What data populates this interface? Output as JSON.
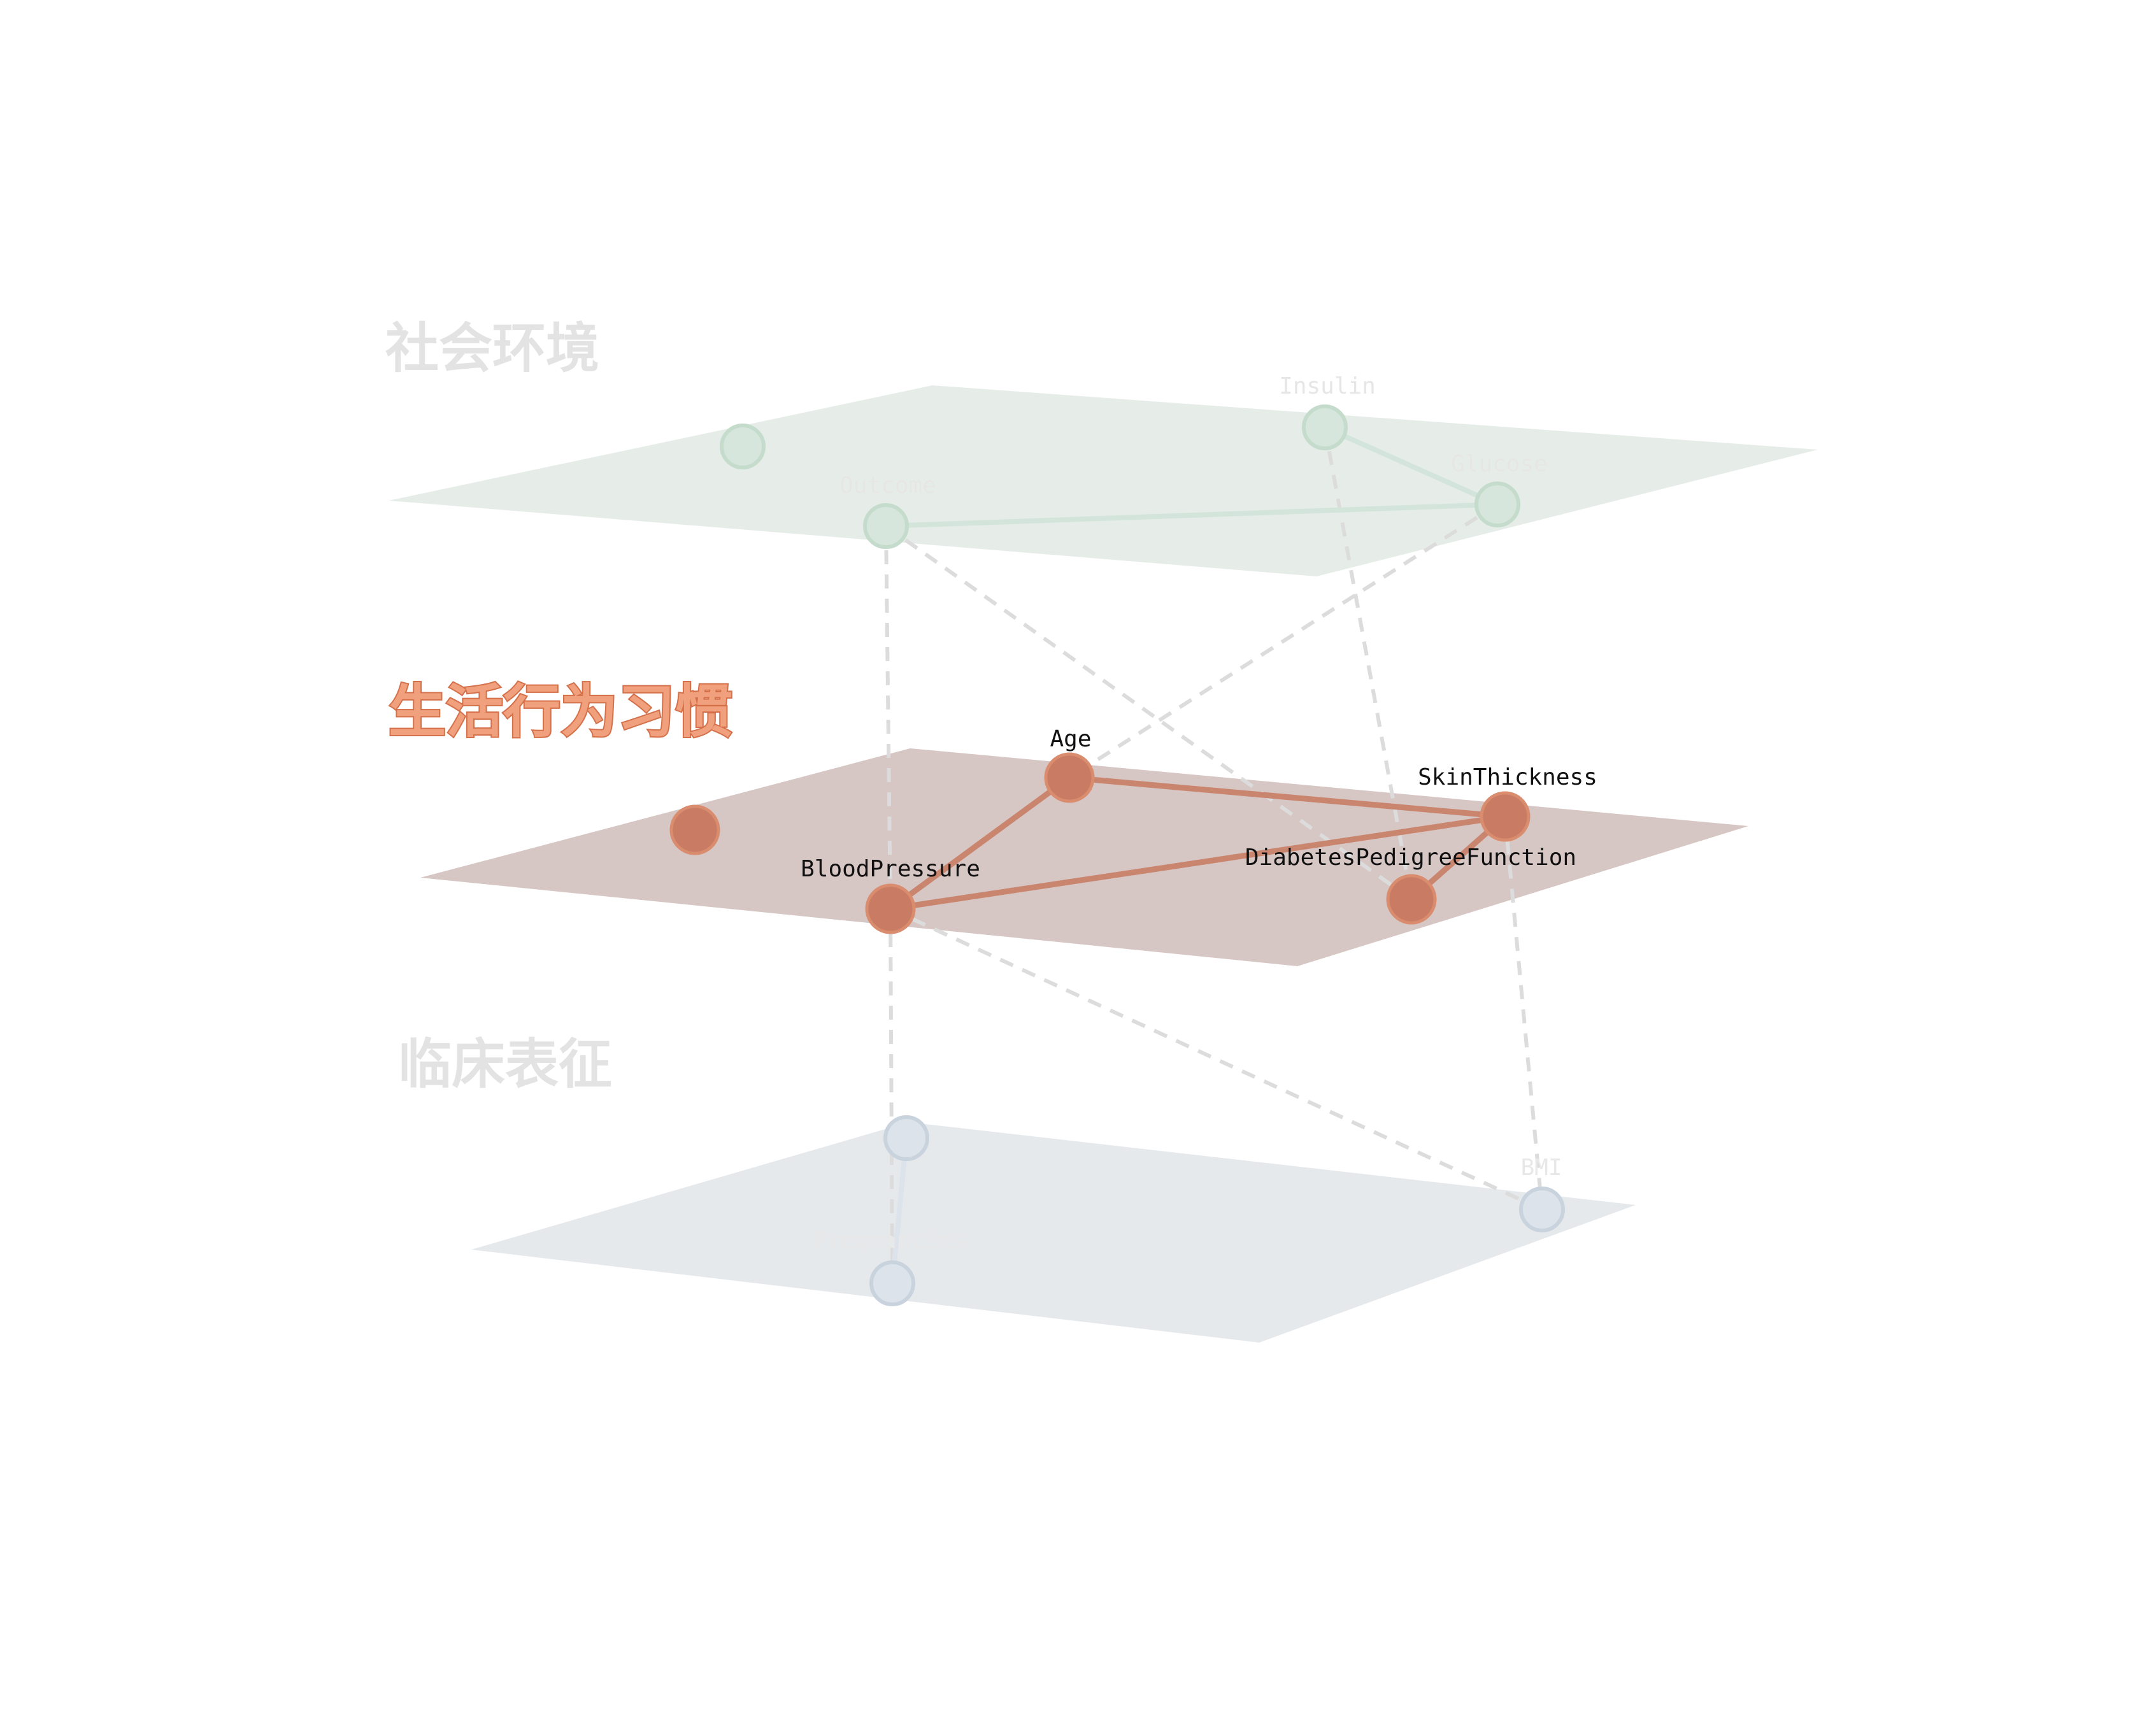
{
  "layers": [
    {
      "id": "social",
      "title": "社会环境",
      "active": false,
      "plane_color": "#e6ede9",
      "node_color": "#d6e6dc",
      "node_stroke": "#c5dccd",
      "title_color": "#e3e3e3",
      "label_color": "#e6e6e6",
      "edge_color": "#d3e5da"
    },
    {
      "id": "lifestyle",
      "title": "生活行为习惯",
      "active": true,
      "plane_color": "#d6c6c4",
      "node_color": "#c97b63",
      "node_stroke": "#d98c6e",
      "title_color": "#f0a07c",
      "title_stroke": "#d4704a",
      "label_color": "#111111",
      "edge_color": "#c9856e"
    },
    {
      "id": "clinical",
      "title": "临床表征",
      "active": false,
      "plane_color": "#e6e9ec",
      "node_color": "#dde3ea",
      "node_stroke": "#c9d3de",
      "title_color": "#e3e3e3",
      "label_color": "#e8e8e8",
      "edge_color": "#dde3ea"
    }
  ],
  "nodes": [
    {
      "id": "social-unlabeled",
      "layer": "social",
      "label": ""
    },
    {
      "id": "insulin",
      "layer": "social",
      "label": "Insulin"
    },
    {
      "id": "outcome",
      "layer": "social",
      "label": "Outcome"
    },
    {
      "id": "glucose",
      "layer": "social",
      "label": "Glucose"
    },
    {
      "id": "lifestyle-unlabeled",
      "layer": "lifestyle",
      "label": ""
    },
    {
      "id": "age",
      "layer": "lifestyle",
      "label": "Age"
    },
    {
      "id": "skinthickness",
      "layer": "lifestyle",
      "label": "SkinThickness"
    },
    {
      "id": "bloodpressure",
      "layer": "lifestyle",
      "label": "BloodPressure"
    },
    {
      "id": "dpf",
      "layer": "lifestyle",
      "label": "DiabetesPedigreeFunction"
    },
    {
      "id": "clinical-unlabeled",
      "layer": "clinical",
      "label": ""
    },
    {
      "id": "bmi",
      "layer": "clinical",
      "label": "BMI"
    },
    {
      "id": "pregnancies",
      "layer": "clinical",
      "label": "Pregnancies"
    }
  ],
  "intra_edges": [
    {
      "from": "insulin",
      "to": "glucose"
    },
    {
      "from": "outcome",
      "to": "glucose"
    },
    {
      "from": "age",
      "to": "bloodpressure"
    },
    {
      "from": "age",
      "to": "skinthickness"
    },
    {
      "from": "bloodpressure",
      "to": "skinthickness"
    },
    {
      "from": "dpf",
      "to": "skinthickness"
    },
    {
      "from": "pregnancies",
      "to": "clinical-unlabeled"
    }
  ],
  "inter_edges": [
    {
      "from": "outcome",
      "to": "bloodpressure"
    },
    {
      "from": "outcome",
      "to": "dpf"
    },
    {
      "from": "insulin",
      "to": "dpf"
    },
    {
      "from": "glucose",
      "to": "age"
    },
    {
      "from": "bloodpressure",
      "to": "pregnancies"
    },
    {
      "from": "bloodpressure",
      "to": "bmi"
    },
    {
      "from": "skinthickness",
      "to": "bmi"
    }
  ],
  "dashed_edge_color": "#dcdcdc"
}
